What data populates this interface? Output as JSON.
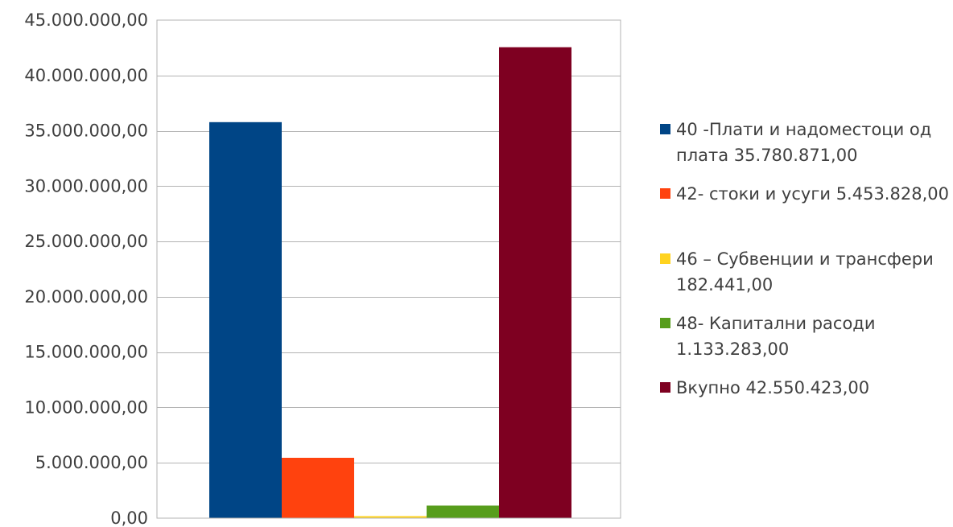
{
  "chart_data": {
    "type": "bar",
    "title": "",
    "xlabel": "",
    "ylabel": "",
    "ylim": [
      0,
      45000000
    ],
    "ytick_step": 5000000,
    "y_ticks": [
      "0,00",
      "5.000.000,00",
      "10.000.000,00",
      "15.000.000,00",
      "20.000.000,00",
      "25.000.000,00",
      "30.000.000,00",
      "35.000.000,00",
      "40.000.000,00",
      "45.000.000,00"
    ],
    "grid": true,
    "legend_position": "right",
    "series": [
      {
        "legend_lines": [
          "40 -Плати и надоместоци од",
          "плата 35.780.871,00"
        ],
        "value": 35780871,
        "color": "#004586"
      },
      {
        "legend_lines": [
          "42- стоки и усуги 5.453.828,00"
        ],
        "value": 5453828,
        "color": "#ff420e"
      },
      {
        "legend_lines": [
          "46 – Субвенции и трансфери",
          "182.441,00"
        ],
        "value": 182441,
        "color": "#ffd320"
      },
      {
        "legend_lines": [
          "48- Капитални расоди",
          "1.133.283,00"
        ],
        "value": 1133283,
        "color": "#579d1c"
      },
      {
        "legend_lines": [
          "Вкупно 42.550.423,00"
        ],
        "value": 42550423,
        "color": "#7e0021"
      }
    ]
  }
}
